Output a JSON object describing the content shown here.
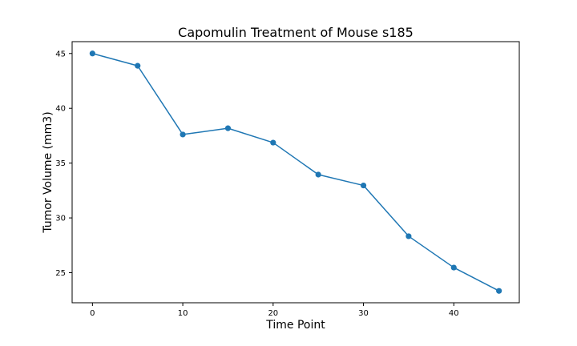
{
  "chart_data": {
    "type": "line",
    "title": "Capomulin Treatment of Mouse s185",
    "xlabel": "Time Point",
    "ylabel": "Tumor Volume (mm3)",
    "x": [
      0,
      5,
      10,
      15,
      20,
      25,
      30,
      35,
      40,
      45
    ],
    "series": [
      {
        "name": "s185",
        "values": [
          45.0,
          43.88,
          37.61,
          38.18,
          36.87,
          33.95,
          32.96,
          28.33,
          25.47,
          23.34
        ],
        "color": "#1f77b4"
      }
    ],
    "xticks": [
      0,
      10,
      20,
      30,
      40
    ],
    "yticks": [
      25,
      30,
      35,
      40,
      45
    ],
    "xlim": [
      -2.25,
      47.25
    ],
    "ylim": [
      22.26,
      46.08
    ],
    "grid": false,
    "legend": false
  }
}
